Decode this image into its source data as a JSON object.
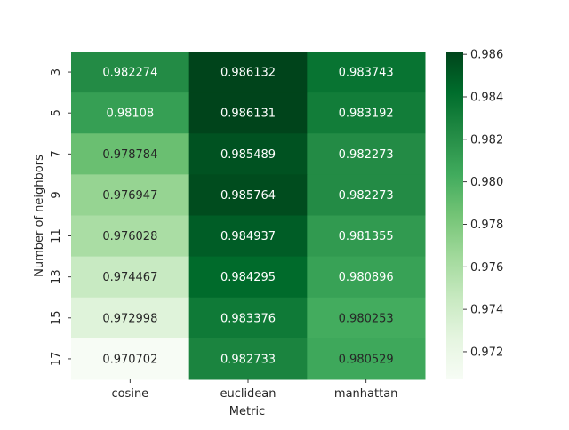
{
  "chart_data": {
    "type": "heatmap",
    "title": "",
    "xlabel": "Metric",
    "ylabel": "Number of neighbors",
    "x_categories": [
      "cosine",
      "euclidean",
      "manhattan"
    ],
    "y_categories": [
      "3",
      "5",
      "7",
      "9",
      "11",
      "13",
      "15",
      "17"
    ],
    "values": [
      [
        0.982274,
        0.986132,
        0.983743
      ],
      [
        0.98108,
        0.986131,
        0.983192
      ],
      [
        0.978784,
        0.985489,
        0.982273
      ],
      [
        0.976947,
        0.985764,
        0.982273
      ],
      [
        0.976028,
        0.984937,
        0.981355
      ],
      [
        0.974467,
        0.984295,
        0.980896
      ],
      [
        0.972998,
        0.983376,
        0.980253
      ],
      [
        0.970702,
        0.982733,
        0.980529
      ]
    ],
    "value_labels": [
      [
        "0.982274",
        "0.986132",
        "0.983743"
      ],
      [
        "0.98108",
        "0.986131",
        "0.983192"
      ],
      [
        "0.978784",
        "0.985489",
        "0.982273"
      ],
      [
        "0.976947",
        "0.985764",
        "0.982273"
      ],
      [
        "0.976028",
        "0.984937",
        "0.981355"
      ],
      [
        "0.974467",
        "0.984295",
        "0.980896"
      ],
      [
        "0.972998",
        "0.983376",
        "0.980253"
      ],
      [
        "0.970702",
        "0.982733",
        "0.980529"
      ]
    ],
    "color_range": [
      0.970702,
      0.986132
    ],
    "colormap": "Greens",
    "colormap_stops": [
      "#f7fcf5",
      "#e5f5e0",
      "#c7e9c0",
      "#a1d99b",
      "#74c476",
      "#41ab5d",
      "#238b45",
      "#006d2c",
      "#00441b"
    ],
    "colorbar": {
      "ticks": [
        0.972,
        0.974,
        0.976,
        0.978,
        0.98,
        0.982,
        0.984,
        0.986
      ],
      "tick_labels": [
        "0.972",
        "0.974",
        "0.976",
        "0.978",
        "0.980",
        "0.982",
        "0.984",
        "0.986"
      ]
    }
  }
}
